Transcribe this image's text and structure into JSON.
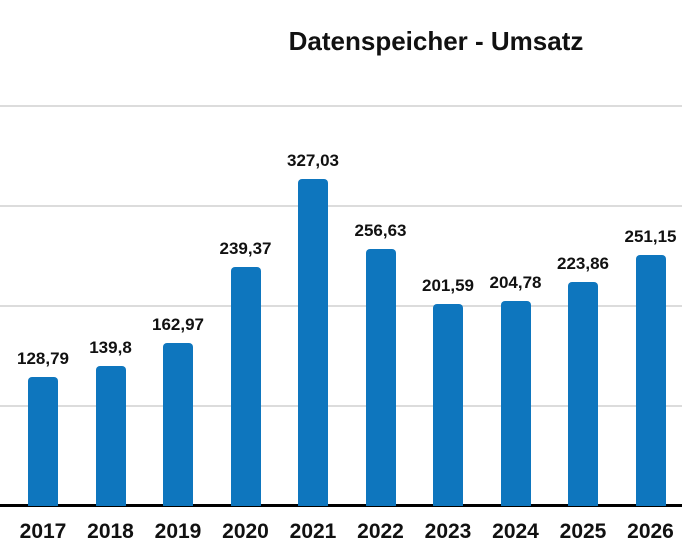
{
  "chart_data": {
    "type": "bar",
    "title": "Datenspeicher - Umsatz",
    "categories": [
      "2017",
      "2018",
      "2019",
      "2020",
      "2021",
      "2022",
      "2023",
      "2024",
      "2025",
      "2026"
    ],
    "values": [
      128.79,
      139.8,
      162.97,
      239.37,
      327.03,
      256.63,
      201.59,
      204.78,
      223.86,
      251.15
    ],
    "value_labels": [
      "128,79",
      "139,8",
      "162,97",
      "239,37",
      "327,03",
      "256,63",
      "201,59",
      "204,78",
      "223,86",
      "251,15"
    ],
    "decimal_separator": ",",
    "xlabel": "",
    "ylabel": "",
    "ylim": [
      0,
      450
    ],
    "gridline_values": [
      100,
      200,
      300,
      400
    ],
    "grid": "horizontal",
    "legend": "none",
    "y_tick_labels_visible": false,
    "x_labels_clipped_at_bottom": true
  },
  "colors": {
    "bar": "#0e76be",
    "gridline": "#dcdcdc",
    "axis_line": "#000000",
    "title_text": "#111111",
    "label_text": "#111111",
    "background": "#ffffff"
  }
}
